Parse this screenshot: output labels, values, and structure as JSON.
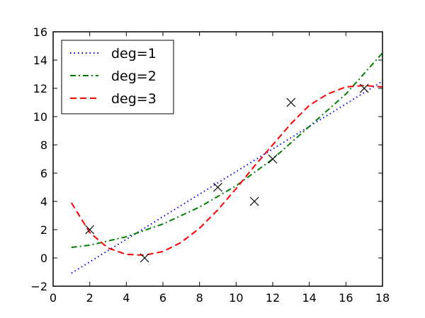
{
  "chart_data": {
    "type": "line",
    "title": "",
    "xlabel": "",
    "ylabel": "",
    "xlim": [
      0,
      18
    ],
    "ylim": [
      -2,
      16
    ],
    "xticks": [
      0,
      2,
      4,
      6,
      8,
      10,
      12,
      14,
      16,
      18
    ],
    "yticks": [
      -2,
      0,
      2,
      4,
      6,
      8,
      10,
      12,
      14,
      16
    ],
    "grid": false,
    "legend_position": "top-left",
    "points": {
      "marker": "x",
      "color": "#000000",
      "x": [
        2,
        5,
        9,
        11,
        12,
        13,
        17
      ],
      "y": [
        2,
        0,
        5,
        4,
        7,
        11,
        12
      ]
    },
    "series": [
      {
        "name": "deg=1",
        "color": "#0000ff",
        "style": "dotted",
        "x": [
          1,
          18
        ],
        "y": [
          -1.08,
          12.5
        ]
      },
      {
        "name": "deg=2",
        "color": "#008000",
        "style": "dashdot",
        "x": [
          1,
          2,
          4,
          6,
          8,
          10,
          12,
          14,
          16,
          18
        ],
        "y": [
          0.75,
          0.9,
          1.5,
          2.4,
          3.6,
          5.1,
          7.0,
          9.3,
          11.6,
          14.5
        ]
      },
      {
        "name": "deg=3",
        "color": "#ff0000",
        "style": "dashed",
        "x": [
          1,
          2,
          3,
          4,
          5,
          6,
          7,
          8,
          9,
          10,
          11,
          12,
          13,
          14,
          15,
          16,
          17,
          18
        ],
        "y": [
          3.9,
          1.8,
          0.7,
          0.25,
          0.2,
          0.45,
          1.1,
          2.1,
          3.4,
          4.9,
          6.5,
          8.0,
          9.5,
          10.8,
          11.6,
          12.1,
          12.2,
          12.1
        ]
      }
    ]
  }
}
